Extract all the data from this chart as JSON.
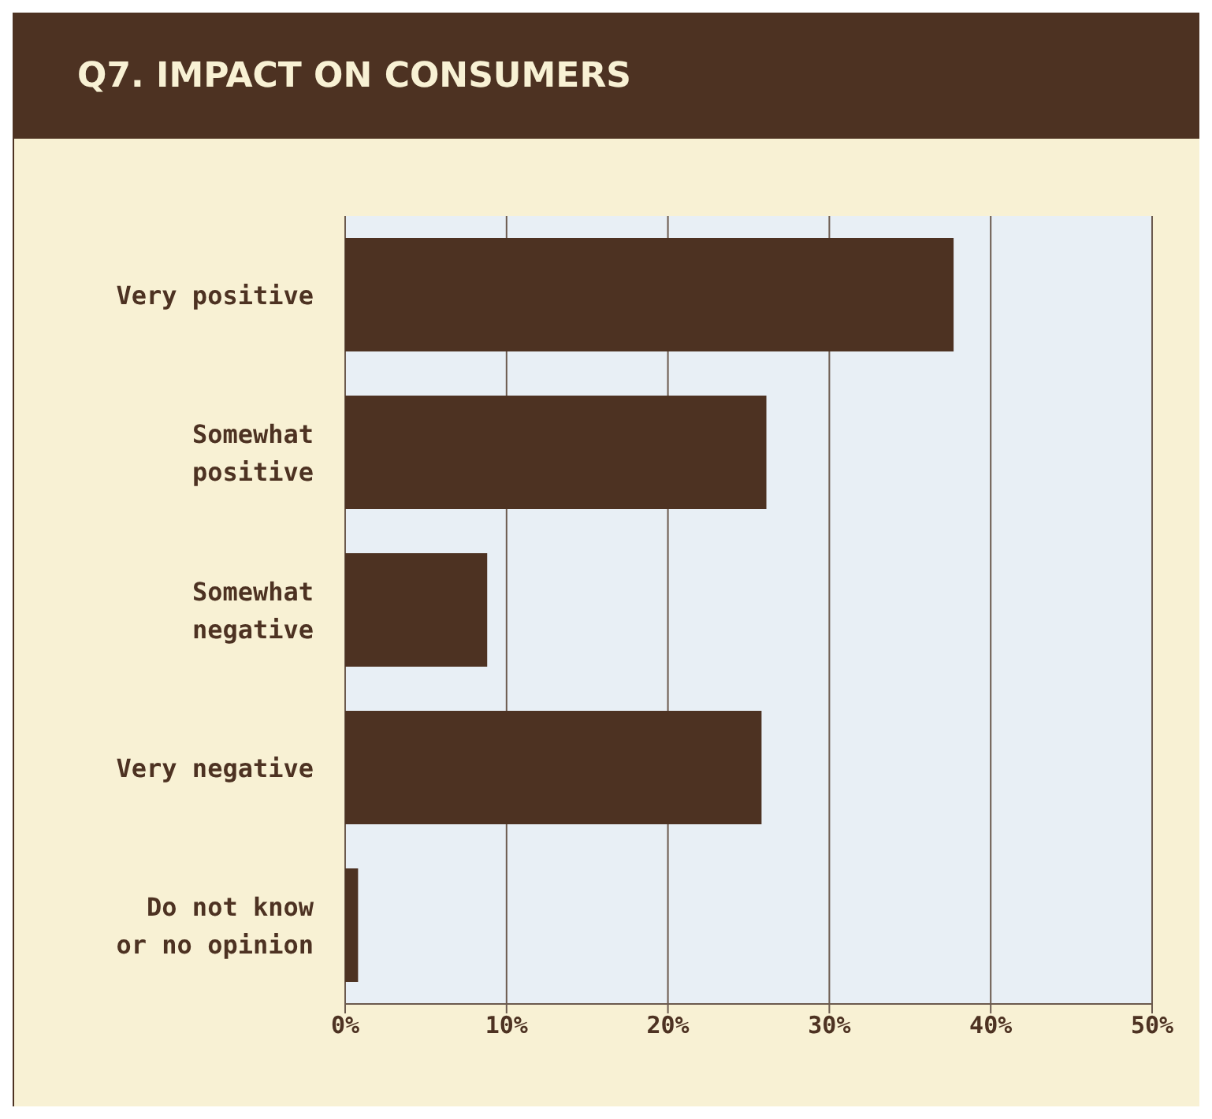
{
  "chart_data": {
    "type": "bar",
    "title": "Q7. IMPACT ON CONSUMERS",
    "orientation": "horizontal",
    "categories": [
      "Very positive",
      "Somewhat positive",
      "Somewhat negative",
      "Very negative",
      "Do not know or no opinion"
    ],
    "values": [
      37.7,
      26.1,
      8.8,
      25.8,
      0.8
    ],
    "color": "#4d3222",
    "xlim": [
      0,
      50
    ],
    "xticks": [
      {
        "value": 0,
        "label": "0%"
      },
      {
        "value": 10,
        "label": "10%"
      },
      {
        "value": 20,
        "label": "20%"
      },
      {
        "value": 30,
        "label": "30%"
      },
      {
        "value": 40,
        "label": "40%"
      },
      {
        "value": 50,
        "label": "50%"
      }
    ],
    "grid": "x"
  }
}
